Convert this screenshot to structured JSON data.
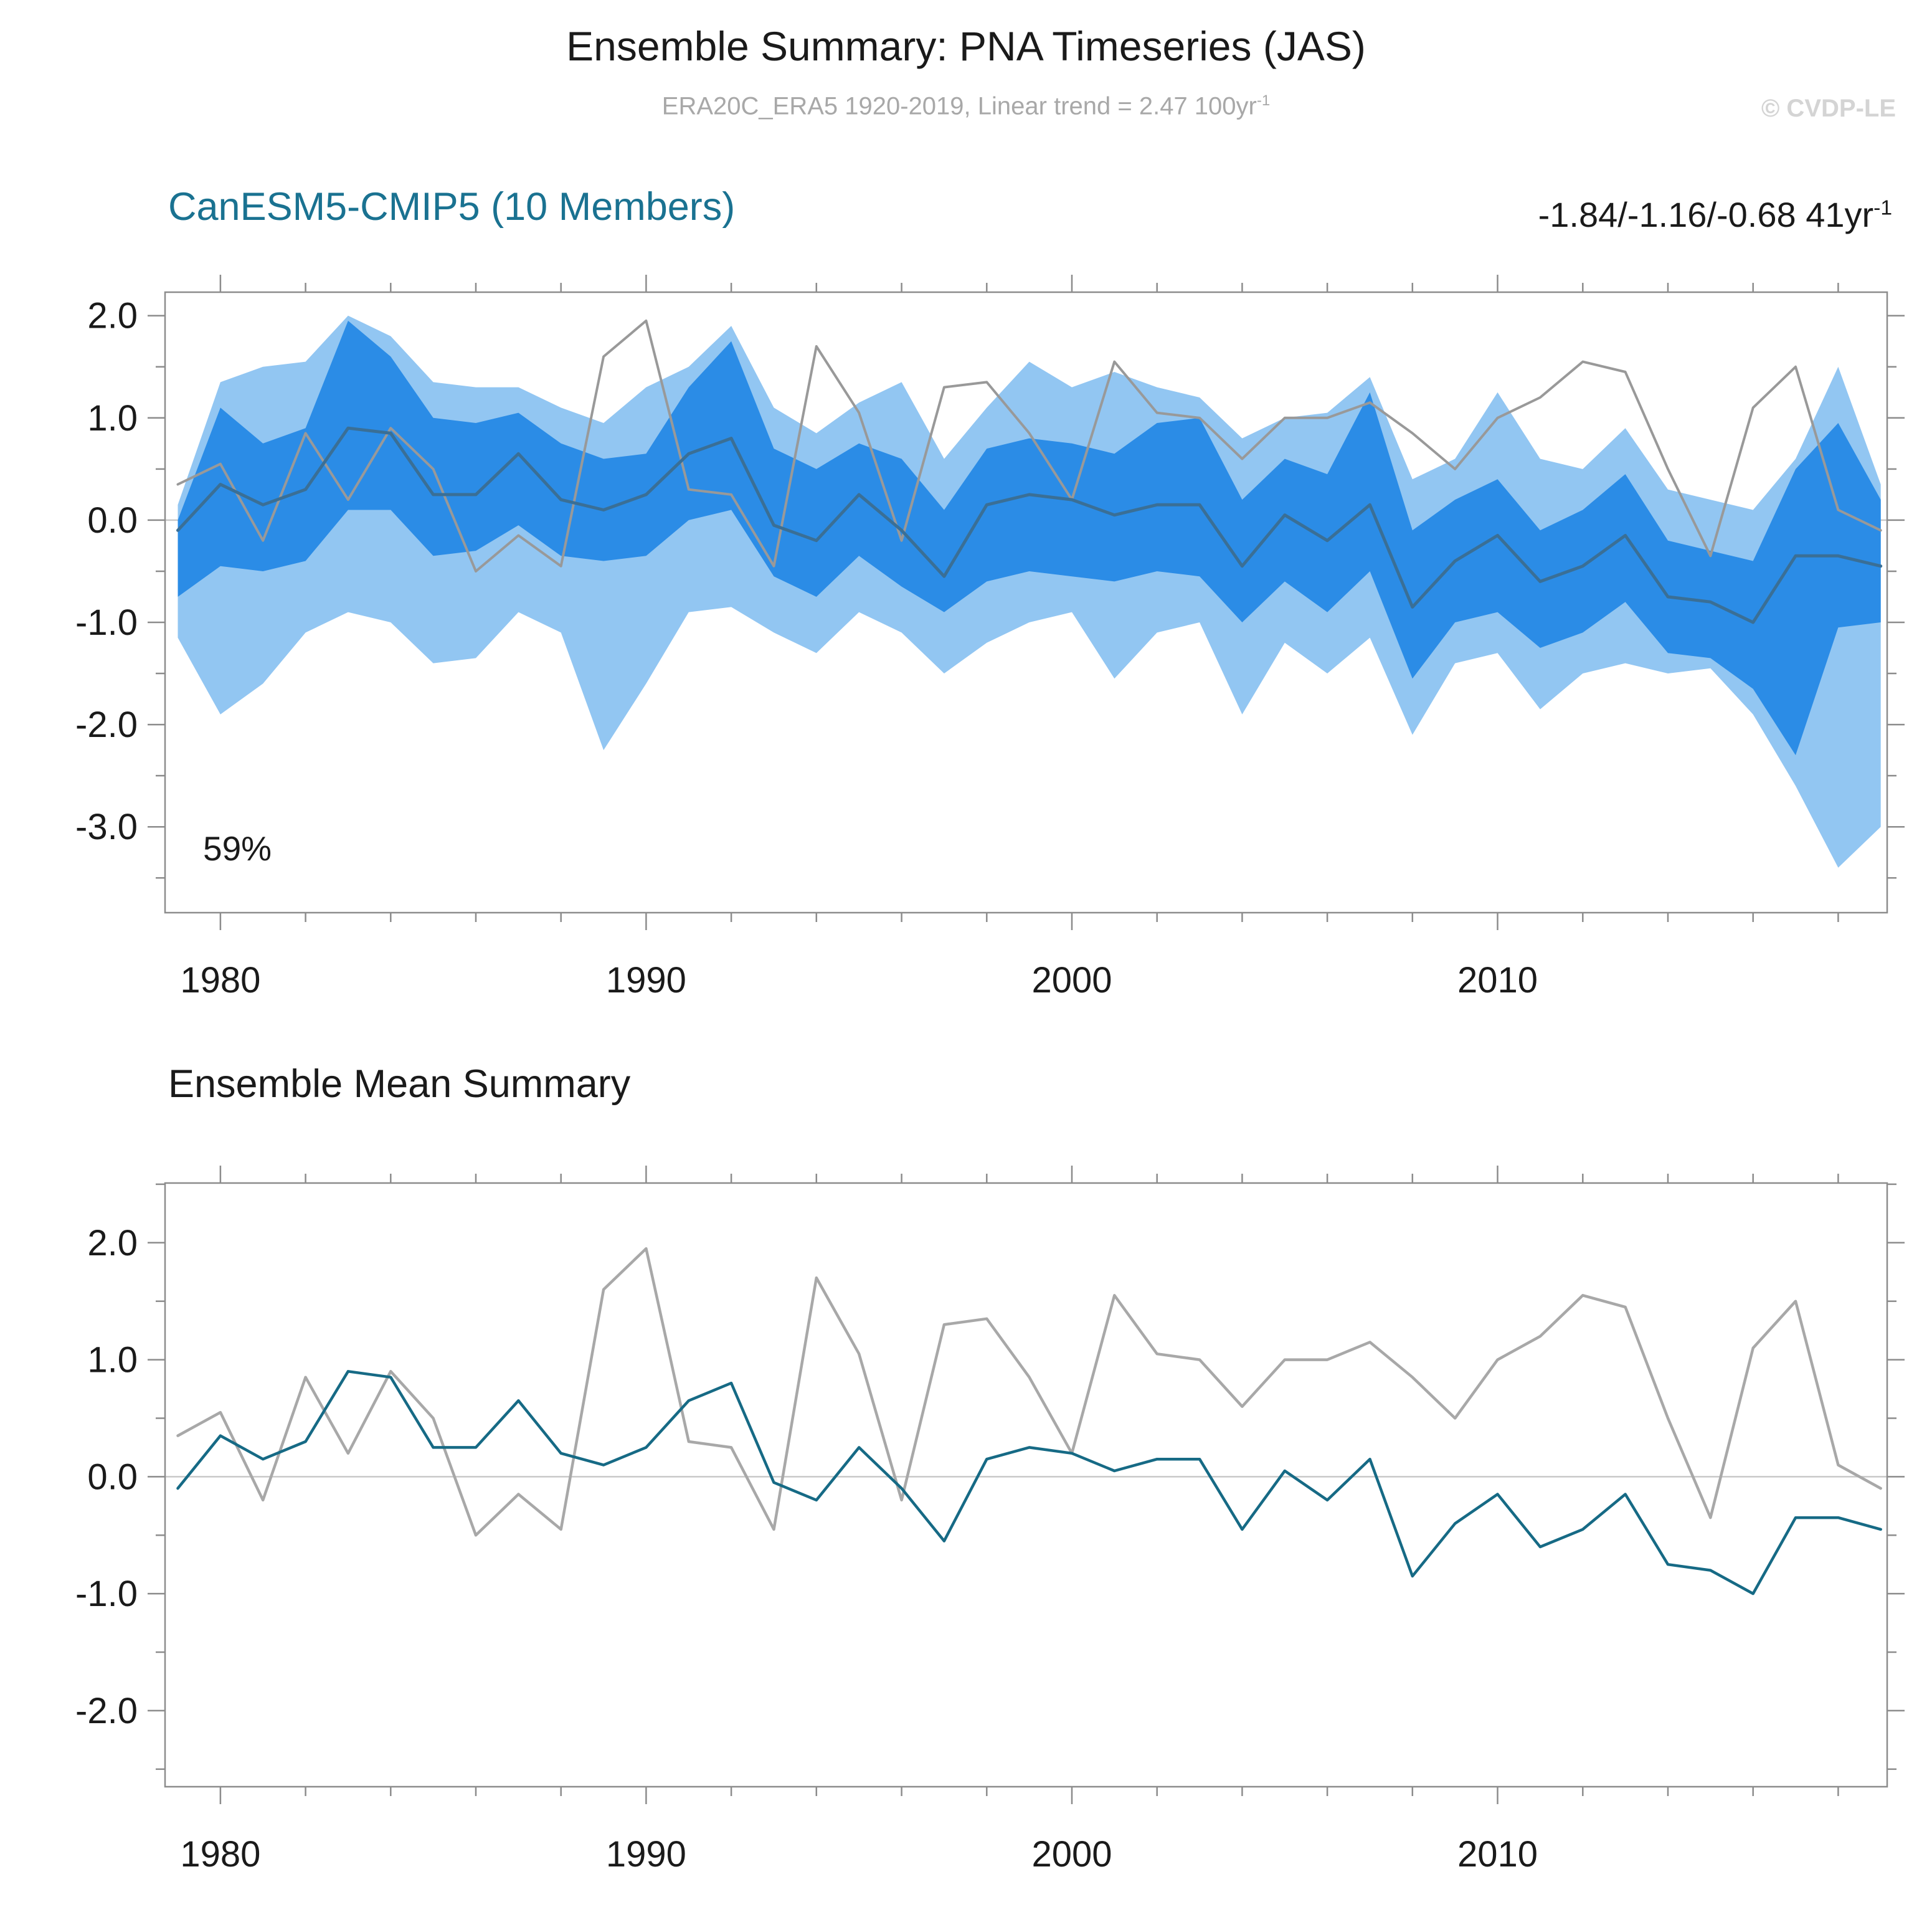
{
  "header": {
    "title": "Ensemble Summary: PNA Timeseries (JAS)",
    "subtitle": "ERA20C_ERA5 1920-2019, Linear trend = 2.47 100yr",
    "subtitle_exp": "-1",
    "credit": "© CVDP-LE"
  },
  "panels": [
    {
      "title": "CanESM5-CMIP5 (10 Members)",
      "stat_label": "-1.84/-1.16/-0.68 41yr",
      "stat_exp": "-1",
      "overlap_pct": "59%"
    },
    {
      "title": "Ensemble Mean Summary"
    }
  ],
  "colors": {
    "band_outer": "#92c6f2",
    "band_inner": "#2b8ce6",
    "mean_line_top": "#3a6f96",
    "mean_line_bottom": "#166a85",
    "obs_line_top": "#999999",
    "obs_line_bottom": "#a8a8a8",
    "zero_line": "#c9c9c9",
    "axis": "#8c8c8c",
    "panel_title": "#1a7291"
  },
  "chart_data": [
    {
      "type": "area",
      "title": "CanESM5-CMIP5 (10 Members)",
      "xlabel": "",
      "ylabel": "",
      "annotations": [
        "59%",
        "-1.84/-1.16/-0.68 41yr-1"
      ],
      "xlim": [
        1978.7,
        2019.15
      ],
      "ylim": [
        -3.84,
        2.23
      ],
      "xticks": [
        1980,
        1990,
        2000,
        2010
      ],
      "xtick_labels": [
        "1980",
        "1990",
        "2000",
        "2010"
      ],
      "yticks": [
        2.0,
        1.0,
        0.0,
        -1.0,
        -2.0,
        -3.0
      ],
      "ytick_labels": [
        "2.0",
        "1.0",
        "0.0",
        "-1.0",
        "-2.0",
        "-3.0"
      ],
      "x": [
        1979,
        1980,
        1981,
        1982,
        1983,
        1984,
        1985,
        1986,
        1987,
        1988,
        1989,
        1990,
        1991,
        1992,
        1993,
        1994,
        1995,
        1996,
        1997,
        1998,
        1999,
        2000,
        2001,
        2002,
        2003,
        2004,
        2005,
        2006,
        2007,
        2008,
        2009,
        2010,
        2011,
        2012,
        2013,
        2014,
        2015,
        2016,
        2017,
        2018,
        2019
      ],
      "series": [
        {
          "name": "ensemble-spread-outer-band",
          "type": "band",
          "color": "#92c6f2",
          "upper": [
            0.15,
            1.35,
            1.5,
            1.55,
            2.0,
            1.8,
            1.35,
            1.3,
            1.3,
            1.1,
            0.95,
            1.3,
            1.5,
            1.9,
            1.1,
            0.85,
            1.15,
            1.35,
            0.6,
            1.1,
            1.55,
            1.3,
            1.45,
            1.3,
            1.2,
            0.8,
            1.0,
            1.05,
            1.4,
            0.4,
            0.6,
            1.25,
            0.6,
            0.5,
            0.9,
            0.3,
            0.2,
            0.1,
            0.6,
            1.5,
            0.35
          ],
          "lower": [
            -1.15,
            -1.9,
            -1.6,
            -1.1,
            -0.9,
            -1.0,
            -1.4,
            -1.35,
            -0.9,
            -1.1,
            -2.25,
            -1.6,
            -0.9,
            -0.85,
            -1.1,
            -1.3,
            -0.9,
            -1.1,
            -1.5,
            -1.2,
            -1.0,
            -0.9,
            -1.55,
            -1.1,
            -1.0,
            -1.9,
            -1.2,
            -1.5,
            -1.15,
            -2.1,
            -1.4,
            -1.3,
            -1.85,
            -1.5,
            -1.4,
            -1.5,
            -1.45,
            -1.9,
            -2.6,
            -3.4,
            -3.0
          ]
        },
        {
          "name": "ensemble-spread-inner-band",
          "type": "band",
          "color": "#2b8ce6",
          "upper": [
            0.0,
            1.1,
            0.75,
            0.9,
            1.95,
            1.6,
            1.0,
            0.95,
            1.05,
            0.75,
            0.6,
            0.65,
            1.3,
            1.75,
            0.7,
            0.5,
            0.75,
            0.6,
            0.1,
            0.7,
            0.8,
            0.75,
            0.65,
            0.95,
            1.0,
            0.2,
            0.6,
            0.45,
            1.25,
            -0.1,
            0.2,
            0.4,
            -0.1,
            0.1,
            0.45,
            -0.2,
            -0.3,
            -0.4,
            0.5,
            0.95,
            0.2
          ],
          "lower": [
            -0.75,
            -0.45,
            -0.5,
            -0.4,
            0.1,
            0.1,
            -0.35,
            -0.3,
            -0.05,
            -0.35,
            -0.4,
            -0.35,
            0.0,
            0.1,
            -0.55,
            -0.75,
            -0.35,
            -0.65,
            -0.9,
            -0.6,
            -0.5,
            -0.55,
            -0.6,
            -0.5,
            -0.55,
            -1.0,
            -0.6,
            -0.9,
            -0.5,
            -1.55,
            -1.0,
            -0.9,
            -1.25,
            -1.1,
            -0.8,
            -1.3,
            -1.35,
            -1.65,
            -2.3,
            -1.05,
            -1.0
          ]
        },
        {
          "name": "observation-line",
          "type": "line",
          "color": "#999999",
          "width": 4,
          "values": [
            0.35,
            0.55,
            -0.2,
            0.85,
            0.2,
            0.9,
            0.5,
            -0.5,
            -0.15,
            -0.45,
            1.6,
            1.95,
            0.3,
            0.25,
            -0.45,
            1.7,
            1.05,
            -0.2,
            1.3,
            1.35,
            0.85,
            0.2,
            1.55,
            1.05,
            1.0,
            0.6,
            1.0,
            1.0,
            1.15,
            0.85,
            0.5,
            1.0,
            1.2,
            1.55,
            1.45,
            0.5,
            -0.35,
            1.1,
            1.5,
            0.1,
            -0.1
          ]
        },
        {
          "name": "ensemble-mean-line",
          "type": "line",
          "color": "#3a6f96",
          "width": 5,
          "values": [
            -0.1,
            0.35,
            0.15,
            0.3,
            0.9,
            0.85,
            0.25,
            0.25,
            0.65,
            0.2,
            0.1,
            0.25,
            0.65,
            0.8,
            -0.05,
            -0.2,
            0.25,
            -0.1,
            -0.55,
            0.15,
            0.25,
            0.2,
            0.05,
            0.15,
            0.15,
            -0.45,
            0.05,
            -0.2,
            0.15,
            -0.85,
            -0.4,
            -0.15,
            -0.6,
            -0.45,
            -0.15,
            -0.75,
            -0.8,
            -1.0,
            -0.35,
            -0.35,
            -0.45
          ]
        }
      ]
    },
    {
      "type": "line",
      "title": "Ensemble Mean Summary",
      "xlabel": "",
      "ylabel": "",
      "xlim": [
        1978.7,
        2019.15
      ],
      "ylim": [
        -2.65,
        2.51
      ],
      "xticks": [
        1980,
        1990,
        2000,
        2010
      ],
      "xtick_labels": [
        "1980",
        "1990",
        "2000",
        "2010"
      ],
      "yticks": [
        2.0,
        1.0,
        0.0,
        -1.0,
        -2.0
      ],
      "ytick_labels": [
        "2.0",
        "1.0",
        "0.0",
        "-1.0",
        "-2.0"
      ],
      "x": [
        1979,
        1980,
        1981,
        1982,
        1983,
        1984,
        1985,
        1986,
        1987,
        1988,
        1989,
        1990,
        1991,
        1992,
        1993,
        1994,
        1995,
        1996,
        1997,
        1998,
        1999,
        2000,
        2001,
        2002,
        2003,
        2004,
        2005,
        2006,
        2007,
        2008,
        2009,
        2010,
        2011,
        2012,
        2013,
        2014,
        2015,
        2016,
        2017,
        2018,
        2019
      ],
      "series": [
        {
          "name": "observation-line",
          "type": "line",
          "color": "#a8a8a8",
          "width": 4.5,
          "values": [
            0.35,
            0.55,
            -0.2,
            0.85,
            0.2,
            0.9,
            0.5,
            -0.5,
            -0.15,
            -0.45,
            1.6,
            1.95,
            0.3,
            0.25,
            -0.45,
            1.7,
            1.05,
            -0.2,
            1.3,
            1.35,
            0.85,
            0.2,
            1.55,
            1.05,
            1.0,
            0.6,
            1.0,
            1.0,
            1.15,
            0.85,
            0.5,
            1.0,
            1.2,
            1.55,
            1.45,
            0.5,
            -0.35,
            1.1,
            1.5,
            0.1,
            -0.1
          ]
        },
        {
          "name": "ensemble-mean-line",
          "type": "line",
          "color": "#166a85",
          "width": 4.5,
          "values": [
            -0.1,
            0.35,
            0.15,
            0.3,
            0.9,
            0.85,
            0.25,
            0.25,
            0.65,
            0.2,
            0.1,
            0.25,
            0.65,
            0.8,
            -0.05,
            -0.2,
            0.25,
            -0.1,
            -0.55,
            0.15,
            0.25,
            0.2,
            0.05,
            0.15,
            0.15,
            -0.45,
            0.05,
            -0.2,
            0.15,
            -0.85,
            -0.4,
            -0.15,
            -0.6,
            -0.45,
            -0.15,
            -0.75,
            -0.8,
            -1.0,
            -0.35,
            -0.35,
            -0.45
          ]
        }
      ]
    }
  ]
}
